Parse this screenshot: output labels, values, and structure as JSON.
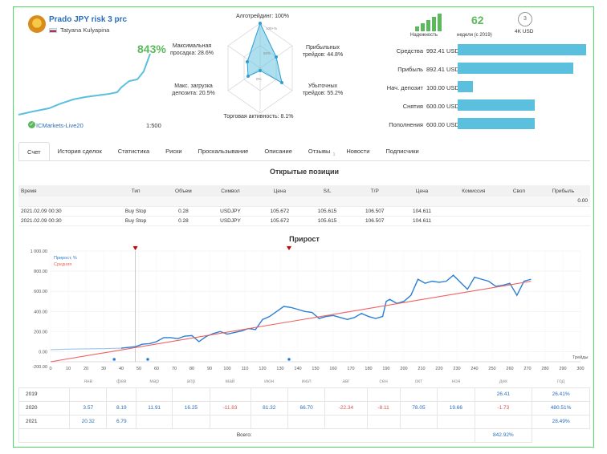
{
  "header": {
    "title": "Prado JPY risk 3 prc",
    "author": "Tatyana Kulyapina",
    "growth": "843%",
    "broker": "ICMarkets-Live20",
    "leverage": "1:500"
  },
  "radar": {
    "algo": "Алготрейдинг: 100%",
    "profit_trades_1": "Прибыльных",
    "profit_trades_2": "трейдов: 44.8%",
    "loss_trades_1": "Убыточных",
    "loss_trades_2": "трейдов: 55.2%",
    "activity": "Торговая активность: 8.1%",
    "max_load_1": "Макс. загрузка",
    "max_load_2": "депозита: 20.5%",
    "max_dd_1": "Максимальная",
    "max_dd_2": "просадка: 28.6%",
    "ring_100": "100+%",
    "ring_50": "50%",
    "ring_0": "0%"
  },
  "badges": {
    "reliability_label": "Надежность",
    "weeks_value": "62",
    "weeks_label": "недели (с 2019)",
    "subscribers_count": "3",
    "subscribers_label": "4K USD"
  },
  "stats": [
    {
      "label": "Средства",
      "value": "992.41 USD",
      "fraction": 1.0
    },
    {
      "label": "Прибыль",
      "value": "892.41 USD",
      "fraction": 0.9
    },
    {
      "label": "Нач. депозит",
      "value": "100.00 USD",
      "fraction": 0.12
    },
    {
      "label": "Снятия",
      "value": "600.00 USD",
      "fraction": 0.6
    },
    {
      "label": "Пополнения",
      "value": "600.00 USD",
      "fraction": 0.6
    }
  ],
  "tabs": [
    {
      "label": "Счет",
      "active": true
    },
    {
      "label": "История сделок"
    },
    {
      "label": "Статистика"
    },
    {
      "label": "Риски"
    },
    {
      "label": "Проскальзывание"
    },
    {
      "label": "Описание"
    },
    {
      "label": "Отзывы",
      "sup": "1"
    },
    {
      "label": "Новости"
    },
    {
      "label": "Подписчики"
    }
  ],
  "positions": {
    "title": "Открытые позиции",
    "headers": [
      "Время",
      "Тип",
      "Объем",
      "Символ",
      "Цена",
      "S/L",
      "T/P",
      "Цена",
      "Комиссия",
      "Своп",
      "Прибыль"
    ],
    "total": "0.00",
    "rows": [
      [
        "2021.02.09 00:30",
        "Buy Stop",
        "0.28",
        "USDJPY",
        "105.672",
        "105.615",
        "106.507",
        "104.611"
      ],
      [
        "2021.02.09 00:30",
        "Buy Stop",
        "0.28",
        "USDJPY",
        "105.672",
        "105.615",
        "106.507",
        "104.611"
      ]
    ]
  },
  "growth_chart": {
    "title": "Прирост",
    "legend_growth": "Прирост, %",
    "legend_avg": "Средняя",
    "x_axis_label": "Трейды"
  },
  "chart_data": {
    "type": "line",
    "title": "Прирост",
    "xlabel": "Трейды",
    "ylabel": "",
    "xlim": [
      0,
      300
    ],
    "ylim": [
      -100,
      1000
    ],
    "x_ticks": [
      0,
      10,
      20,
      30,
      40,
      50,
      60,
      70,
      80,
      90,
      100,
      110,
      120,
      130,
      140,
      150,
      160,
      170,
      180,
      190,
      200,
      210,
      220,
      230,
      240,
      250,
      260,
      270,
      280,
      290,
      300
    ],
    "y_ticks": [
      -200,
      0,
      200,
      400,
      600,
      800,
      1000
    ],
    "y_tick_labels": [
      "-200.00",
      "0.00",
      "200.00",
      "400.00",
      "600.00",
      "800.00",
      "1 000.00"
    ],
    "series": [
      {
        "name": "Прирост, %",
        "color": "#2a7fd4",
        "x": [
          0,
          10,
          20,
          30,
          40,
          48,
          52,
          56,
          60,
          64,
          68,
          72,
          76,
          80,
          84,
          88,
          92,
          96,
          100,
          104,
          108,
          112,
          116,
          120,
          124,
          128,
          132,
          136,
          140,
          144,
          148,
          152,
          156,
          160,
          164,
          168,
          172,
          176,
          180,
          184,
          188,
          190,
          192,
          196,
          200,
          204,
          208,
          212,
          216,
          220,
          224,
          228,
          232,
          236,
          240,
          244,
          248,
          252,
          256,
          260,
          264,
          268,
          272
        ],
        "y": [
          20,
          25,
          28,
          30,
          35,
          50,
          75,
          80,
          100,
          140,
          140,
          130,
          155,
          160,
          100,
          150,
          180,
          200,
          175,
          190,
          205,
          230,
          220,
          320,
          350,
          400,
          450,
          440,
          420,
          400,
          390,
          330,
          350,
          360,
          340,
          320,
          340,
          380,
          350,
          330,
          350,
          500,
          520,
          480,
          500,
          560,
          720,
          680,
          700,
          690,
          700,
          760,
          690,
          620,
          740,
          720,
          700,
          650,
          660,
          680,
          560,
          700,
          720
        ]
      },
      {
        "name": "Средняя",
        "color": "#f06060",
        "x": [
          0,
          272
        ],
        "y": [
          -100,
          700
        ]
      }
    ],
    "months": [
      "янв",
      "фев",
      "мар",
      "апр",
      "май",
      "июн",
      "июл",
      "авг",
      "сен",
      "окт",
      "ноя",
      "дек",
      "год"
    ],
    "years": [
      {
        "year": "2019",
        "values": [
          "",
          "",
          "",
          "",
          "",
          "",
          "",
          "",
          "",
          "",
          "",
          "26.41",
          "26.41%"
        ]
      },
      {
        "year": "2020",
        "values": [
          "3.57",
          "8.19",
          "11.91",
          "16.25",
          "-11.83",
          "81.32",
          "66.70",
          "-22.34",
          "-8.11",
          "78.05",
          "19.66",
          "-1.73",
          "480.51%"
        ]
      },
      {
        "year": "2021",
        "values": [
          "20.32",
          "6.79",
          "",
          "",
          "",
          "",
          "",
          "",
          "",
          "",
          "",
          "",
          "28.49%"
        ]
      }
    ],
    "total_label": "Всего:",
    "total_value": "842.92%"
  }
}
